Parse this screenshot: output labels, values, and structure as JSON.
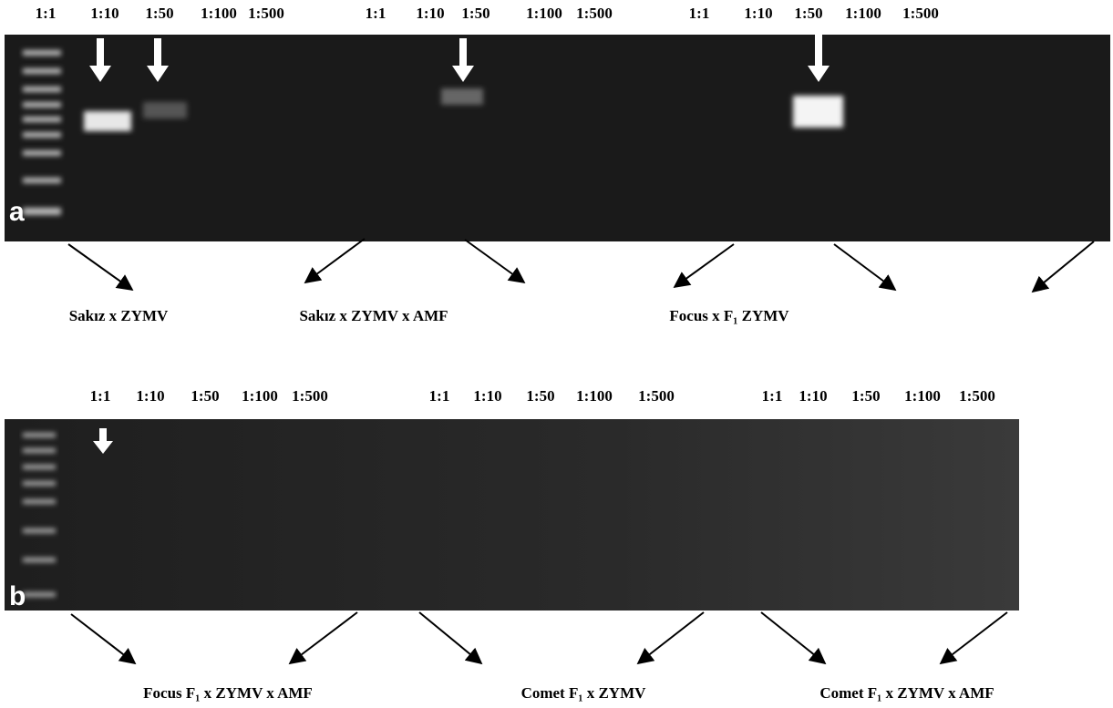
{
  "panels": [
    {
      "letter": "a",
      "lane_labels": [
        "1:1",
        "1:10",
        "1:50",
        "1:100",
        "1:500",
        "1:1",
        "1:10",
        "1:50",
        "1:100",
        "1:500",
        "1:1",
        "1:10",
        "1:50",
        "1:100",
        "1:500"
      ],
      "group_labels": [
        "Sakız x ZYMV",
        "Sakız x ZYMV x AMF",
        "Focus x F₁ ZYMV"
      ]
    },
    {
      "letter": "b",
      "lane_labels": [
        "1:1",
        "1:10",
        "1:50",
        "1:100",
        "1:500",
        "1:1",
        "1:10",
        "1:50",
        "1:100",
        "1:500",
        "1:1",
        "1:10",
        "1:50",
        "1:100",
        "1:500"
      ],
      "group_labels": [
        "Focus F₁ x ZYMV x AMF",
        "Comet F₁ x ZYMV",
        "Comet F₁ x ZYMV x AMF"
      ]
    }
  ]
}
